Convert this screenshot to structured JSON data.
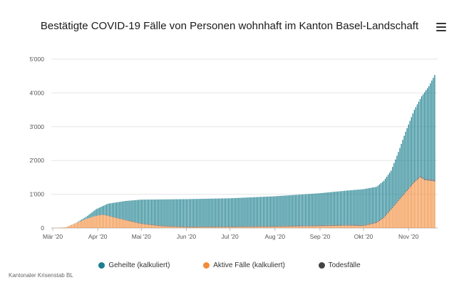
{
  "title": "Bestätigte COVID-19 Fälle von Personen wohnhaft im Kanton Basel-Landschaft",
  "menu_icon": "hamburger-menu-icon",
  "credits": "Kantonaler Krisenstab BL",
  "colors": {
    "geheilte": "#1a7f8e",
    "aktive": "#f28c3a",
    "todesfaelle": "#444444",
    "grid": "#e6e6e6"
  },
  "chart_data": {
    "type": "bar",
    "stacked": true,
    "title": "Bestätigte COVID-19 Fälle von Personen wohnhaft im Kanton Basel-Landschaft",
    "xlabel": "",
    "ylabel": "",
    "ylim": [
      0,
      5000
    ],
    "y_ticks": [
      0,
      1000,
      2000,
      3000,
      4000,
      5000
    ],
    "y_tick_labels": [
      "0",
      "1'000",
      "2'000",
      "3'000",
      "4'000",
      "5'000"
    ],
    "x_ticks": [
      "2020-03-01",
      "2020-04-01",
      "2020-05-01",
      "2020-06-01",
      "2020-07-01",
      "2020-08-01",
      "2020-09-01",
      "2020-10-01",
      "2020-11-01"
    ],
    "x_tick_labels": [
      "Mär '20",
      "Apr '20",
      "Mai '20",
      "Jun '20",
      "Jul '20",
      "Aug '20",
      "Sep '20",
      "Okt '20",
      "Nov '20"
    ],
    "x_range": [
      "2020-02-29",
      "2020-11-21"
    ],
    "grid": true,
    "legend_position": "bottom",
    "total_keypoints": [
      [
        "2020-03-01",
        0
      ],
      [
        "2020-03-10",
        20
      ],
      [
        "2020-03-17",
        150
      ],
      [
        "2020-03-24",
        330
      ],
      [
        "2020-03-31",
        560
      ],
      [
        "2020-04-08",
        720
      ],
      [
        "2020-04-20",
        800
      ],
      [
        "2020-05-01",
        840
      ],
      [
        "2020-06-01",
        855
      ],
      [
        "2020-07-01",
        880
      ],
      [
        "2020-08-01",
        940
      ],
      [
        "2020-09-01",
        1030
      ],
      [
        "2020-09-20",
        1110
      ],
      [
        "2020-10-01",
        1150
      ],
      [
        "2020-10-10",
        1220
      ],
      [
        "2020-10-15",
        1400
      ],
      [
        "2020-10-20",
        1700
      ],
      [
        "2020-10-25",
        2250
      ],
      [
        "2020-10-30",
        2850
      ],
      [
        "2020-11-05",
        3500
      ],
      [
        "2020-11-10",
        3900
      ],
      [
        "2020-11-15",
        4200
      ],
      [
        "2020-11-19",
        4530
      ]
    ],
    "active_keypoints": [
      [
        "2020-03-01",
        0
      ],
      [
        "2020-03-10",
        20
      ],
      [
        "2020-03-17",
        140
      ],
      [
        "2020-03-24",
        270
      ],
      [
        "2020-03-31",
        360
      ],
      [
        "2020-04-05",
        390
      ],
      [
        "2020-04-15",
        280
      ],
      [
        "2020-04-25",
        180
      ],
      [
        "2020-05-01",
        120
      ],
      [
        "2020-05-15",
        50
      ],
      [
        "2020-06-01",
        20
      ],
      [
        "2020-07-01",
        25
      ],
      [
        "2020-08-01",
        35
      ],
      [
        "2020-09-01",
        55
      ],
      [
        "2020-09-20",
        70
      ],
      [
        "2020-10-01",
        60
      ],
      [
        "2020-10-10",
        150
      ],
      [
        "2020-10-15",
        300
      ],
      [
        "2020-10-20",
        550
      ],
      [
        "2020-10-25",
        800
      ],
      [
        "2020-10-30",
        1050
      ],
      [
        "2020-11-05",
        1350
      ],
      [
        "2020-11-09",
        1500
      ],
      [
        "2020-11-12",
        1420
      ],
      [
        "2020-11-19",
        1380
      ]
    ],
    "deaths_keypoints": [
      [
        "2020-03-01",
        0
      ],
      [
        "2020-04-01",
        10
      ],
      [
        "2020-05-01",
        25
      ],
      [
        "2020-10-01",
        30
      ],
      [
        "2020-11-19",
        45
      ]
    ],
    "series": [
      {
        "name": "Geheilte (kalkuliert)",
        "color": "#1a7f8e"
      },
      {
        "name": "Aktive Fälle (kalkuliert)",
        "color": "#f28c3a"
      },
      {
        "name": "Todesfälle",
        "color": "#444444"
      }
    ]
  }
}
